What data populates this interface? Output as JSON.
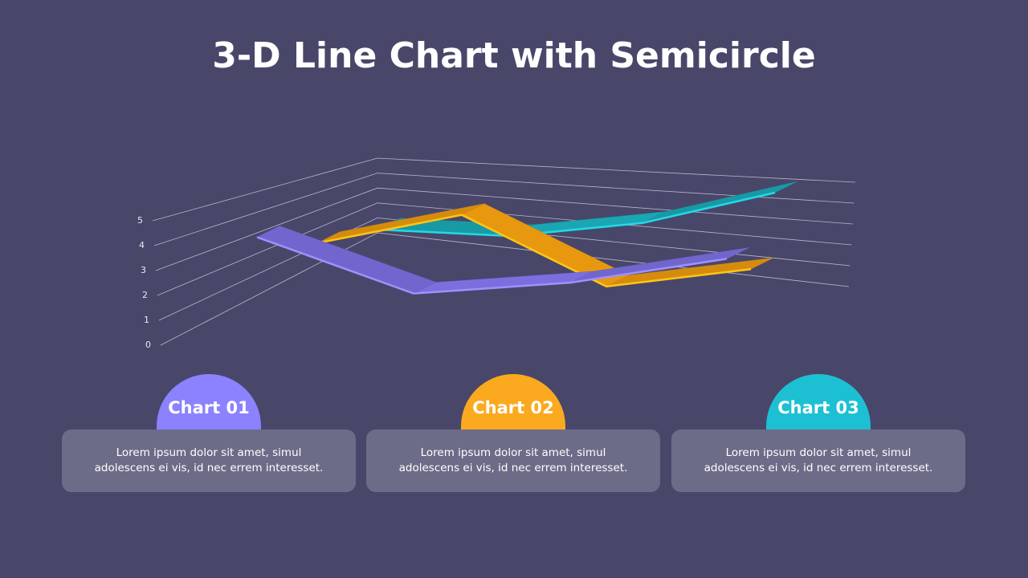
{
  "chart_data": {
    "type": "line3d",
    "title": "3-D Line Chart with Semicircle",
    "categories": [
      null,
      null,
      null,
      null
    ],
    "series": [
      {
        "color": "#7b6fe0",
        "values": [
          4.8,
          2.2,
          2.7,
          3.8
        ]
      },
      {
        "color": "#e8980f",
        "values": [
          3.6,
          4.9,
          1.6,
          2.4
        ]
      },
      {
        "color": "#1aa7b3",
        "values": [
          3.3,
          3.0,
          3.6,
          5.0
        ]
      }
    ],
    "ylim": [
      0,
      5
    ],
    "yticks": [
      0,
      1,
      2,
      3,
      4,
      5
    ],
    "grid": true
  },
  "cards": [
    {
      "title": "Chart 01",
      "text": "Lorem ipsum dolor sit amet, simul adolescens ei vis, id nec errem interesset."
    },
    {
      "title": "Chart 02",
      "text": "Lorem ipsum dolor sit amet, simul adolescens ei vis, id nec errem interesset."
    },
    {
      "title": "Chart 03",
      "text": "Lorem ipsum dolor sit amet, simul adolescens ei vis, id nec errem interesset."
    }
  ]
}
